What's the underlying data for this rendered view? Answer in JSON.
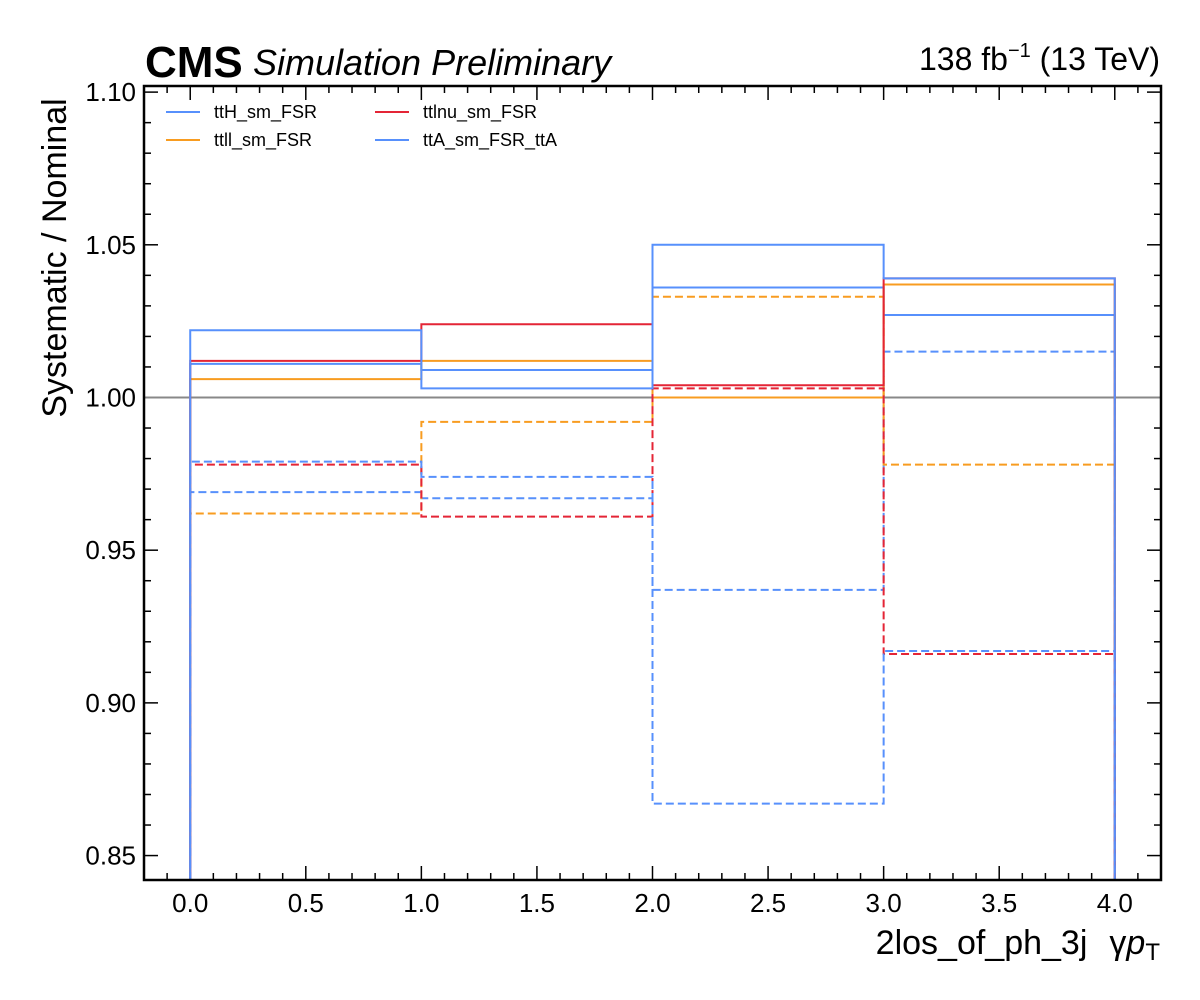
{
  "header": {
    "experiment": "CMS",
    "status": "Simulation Preliminary",
    "lumi_value": "138 fb",
    "lumi_exponent": "−1",
    "energy": " (13 TeV)"
  },
  "chart_data": {
    "type": "step",
    "xlabel_main": "2los_of_ph_3j",
    "xlabel_var": "γ",
    "xlabel_p": "p",
    "xlabel_sub": "T",
    "ylabel": "Systematic / Nominal",
    "xlim": [
      -0.2,
      4.2
    ],
    "ylim": [
      0.842,
      1.102
    ],
    "x_ticks": [
      0.0,
      0.5,
      1.0,
      1.5,
      2.0,
      2.5,
      3.0,
      3.5,
      4.0
    ],
    "x_tick_labels": [
      "0.0",
      "0.5",
      "1.0",
      "1.5",
      "2.0",
      "2.5",
      "3.0",
      "3.5",
      "4.0"
    ],
    "y_ticks": [
      0.85,
      0.9,
      0.95,
      1.0,
      1.05,
      1.1
    ],
    "y_tick_labels": [
      "0.85",
      "0.90",
      "0.95",
      "1.00",
      "1.05",
      "1.10"
    ],
    "reference_line": 1.0,
    "bin_edges": [
      0,
      1,
      2,
      3,
      4
    ],
    "legend_placement": "top-left",
    "series": [
      {
        "name": "ttH_sm_FSR",
        "color": "#5790fc",
        "style": "solid",
        "values": [
          1.011,
          1.009,
          1.036,
          1.027
        ]
      },
      {
        "name": "ttH_sm_FSR",
        "color": "#5790fc",
        "style": "dashed",
        "values": [
          0.969,
          0.967,
          0.937,
          1.015
        ]
      },
      {
        "name": "ttll_sm_FSR",
        "color": "#f89c20",
        "style": "solid",
        "values": [
          1.006,
          1.012,
          1.0,
          1.037
        ]
      },
      {
        "name": "ttll_sm_FSR",
        "color": "#f89c20",
        "style": "dashed",
        "values": [
          0.962,
          0.992,
          1.033,
          0.978
        ]
      },
      {
        "name": "ttlnu_sm_FSR",
        "color": "#e42536",
        "style": "solid",
        "values": [
          1.012,
          1.024,
          1.004,
          1.039
        ]
      },
      {
        "name": "ttlnu_sm_FSR",
        "color": "#e42536",
        "style": "dashed",
        "values": [
          0.978,
          0.961,
          1.003,
          0.916
        ]
      },
      {
        "name": "ttA_sm_FSR_ttA",
        "color": "#5790fc",
        "style": "solid",
        "values": [
          1.022,
          1.003,
          1.05,
          1.039
        ]
      },
      {
        "name": "ttA_sm_FSR_ttA",
        "color": "#5790fc",
        "style": "dashed",
        "values": [
          0.979,
          0.974,
          0.867,
          0.917
        ]
      }
    ],
    "legend": [
      {
        "label": "ttH_sm_FSR",
        "color": "#5790fc"
      },
      {
        "label": "ttll_sm_FSR",
        "color": "#f89c20"
      },
      {
        "label": "ttlnu_sm_FSR",
        "color": "#e42536"
      },
      {
        "label": "ttA_sm_FSR_ttA",
        "color": "#5790fc"
      }
    ]
  }
}
